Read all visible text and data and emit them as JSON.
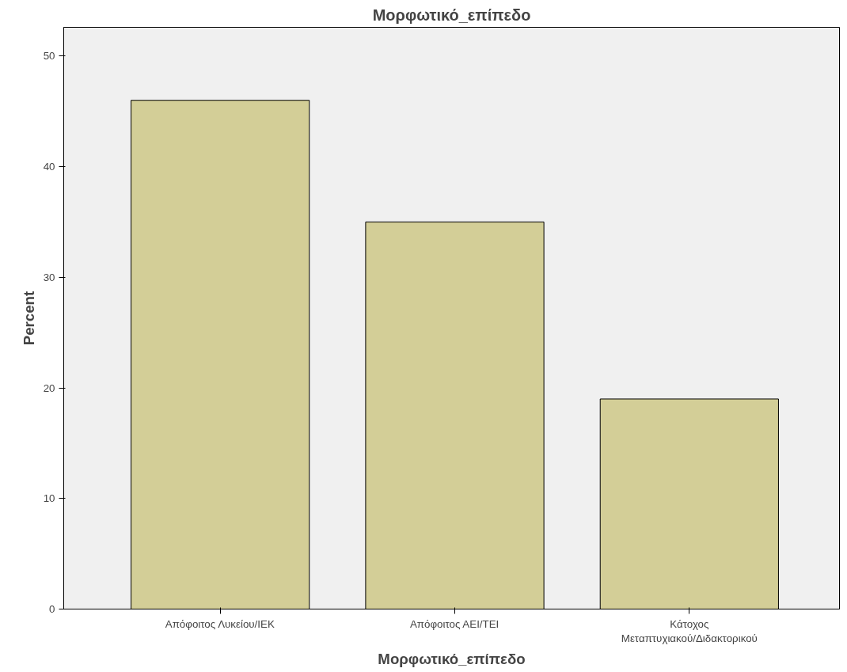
{
  "chart_data": {
    "type": "bar",
    "title": "Μορφωτικό_επίπεδο",
    "xlabel": "Μορφωτικό_επίπεδο",
    "ylabel": "Percent",
    "categories": [
      "Απόφοιτος Λυκείου/ΙΕΚ",
      "Απόφοιτος ΑΕΙ/ΤΕΙ",
      "Κάτοχος Μεταπτυχιακού/Διδακτορικού"
    ],
    "values": [
      46,
      35,
      19
    ],
    "color": "#d3ce97",
    "ylim": [
      0,
      52.6
    ],
    "yticks": [
      0,
      10,
      20,
      30,
      40,
      50
    ],
    "grid": false
  }
}
